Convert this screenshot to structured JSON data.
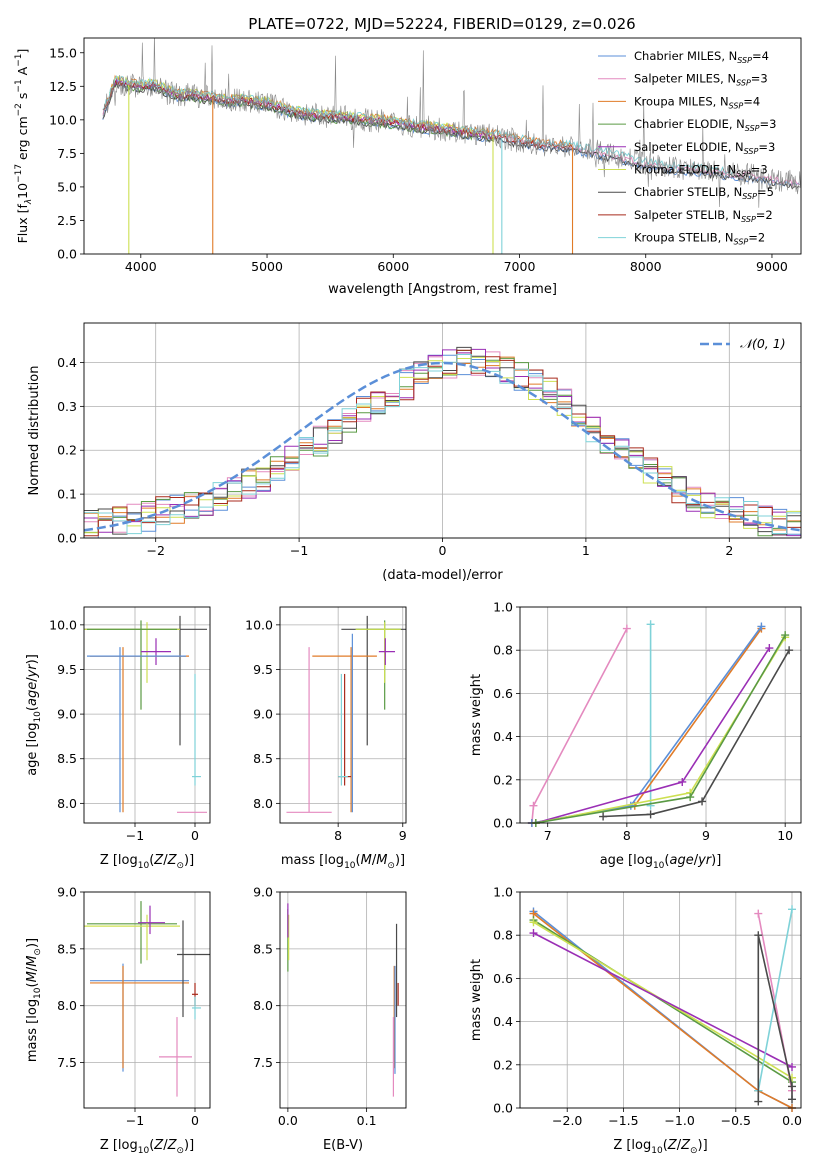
{
  "figure": {
    "title": "PLATE=0722, MJD=52224, FIBERID=0129, z=0.026"
  },
  "colors": {
    "Chabrier MILES": "#5b8fd8",
    "Salpeter MILES": "#e48abf",
    "Kroupa MILES": "#e07b28",
    "Chabrier ELODIE": "#5a9a44",
    "Salpeter ELODIE": "#9a2fb5",
    "Kroupa ELODIE": "#cde052",
    "Chabrier STELIB": "#4a4a4a",
    "Salpeter STELIB": "#a82a1c",
    "Kroupa STELIB": "#7fd2d8",
    "data": "#888888",
    "normal": "#5b8fd8",
    "grid": "#b0b0b0"
  },
  "chart_data": [
    {
      "type": "line",
      "panel": "spectrum",
      "title": "PLATE=0722, MJD=52224, FIBERID=0129, z=0.026",
      "xlabel": "wavelength [Angstrom, rest frame]",
      "ylabel": "Flux [f",
      "ylabel_sub": "λ",
      "ylabel_rest": "10",
      "ylabel_exp": "−17",
      "ylabel_tail": " erg cm",
      "ylabel_exp2": "−2",
      "ylabel_tail2": " s",
      "ylabel_exp3": "−1",
      "ylabel_tail3": " A",
      "ylabel_exp4": "−1",
      "ylabel_end": "]",
      "xlim": [
        3550,
        9230
      ],
      "ylim": [
        0,
        16.1
      ],
      "xticks": [
        4000,
        5000,
        6000,
        7000,
        8000,
        9000
      ],
      "yticks": [
        0.0,
        2.5,
        5.0,
        7.5,
        10.0,
        12.5,
        15.0
      ],
      "grid": false,
      "legend_position": "top-right",
      "legend": [
        {
          "label": "Chabrier MILES, N",
          "sub": "SSP",
          "tail": "=4"
        },
        {
          "label": "Salpeter MILES, N",
          "sub": "SSP",
          "tail": "=3"
        },
        {
          "label": "Kroupa MILES, N",
          "sub": "SSP",
          "tail": "=4"
        },
        {
          "label": "Chabrier ELODIE, N",
          "sub": "SSP",
          "tail": "=3"
        },
        {
          "label": "Salpeter ELODIE, N",
          "sub": "SSP",
          "tail": "=3"
        },
        {
          "label": "Kroupa ELODIE, N",
          "sub": "SSP",
          "tail": "=3"
        },
        {
          "label": "Chabrier STELIB, N",
          "sub": "SSP",
          "tail": "=5"
        },
        {
          "label": "Salpeter STELIB, N",
          "sub": "SSP",
          "tail": "=2"
        },
        {
          "label": "Kroupa STELIB, N",
          "sub": "SSP",
          "tail": "=2"
        }
      ],
      "model_continuum": {
        "x": [
          3700,
          3750,
          3800,
          3900,
          4000,
          4100,
          4200,
          4300,
          4400,
          4500,
          4600,
          4700,
          4800,
          4900,
          5000,
          5200,
          5400,
          5600,
          5800,
          6000,
          6200,
          6400,
          6600,
          6800,
          7000,
          7200,
          7400,
          7600,
          7800,
          8000,
          8200,
          8400,
          8600,
          8800,
          9000,
          9200
        ],
        "y": [
          10.5,
          11.6,
          12.9,
          12.6,
          12.5,
          12.6,
          12.2,
          11.8,
          11.9,
          11.7,
          11.6,
          11.4,
          11.5,
          11.3,
          11.2,
          10.6,
          10.3,
          10.2,
          10.0,
          9.8,
          9.5,
          9.3,
          9.0,
          8.8,
          8.4,
          8.1,
          8.0,
          7.6,
          7.2,
          6.7,
          6.4,
          6.3,
          6.0,
          5.9,
          5.6,
          5.3
        ]
      },
      "edge_drops": [
        {
          "series": "Kroupa ELODIE",
          "x": 3905
        },
        {
          "series": "Kroupa MILES",
          "x": 4570
        },
        {
          "series": "Kroupa ELODIE",
          "x": 6790
        },
        {
          "series": "Kroupa STELIB",
          "x": 6860
        },
        {
          "series": "Kroupa MILES",
          "x": 7420
        }
      ]
    },
    {
      "type": "histogram",
      "panel": "residuals",
      "xlabel": "(data-model)/error",
      "ylabel": "Normed distribution",
      "xlim": [
        -2.5,
        2.5
      ],
      "ylim": [
        0,
        0.49
      ],
      "xticks": [
        -2,
        -1,
        0,
        1,
        2
      ],
      "yticks": [
        0.0,
        0.1,
        0.2,
        0.3,
        0.4
      ],
      "grid": true,
      "legend_position": "top-right",
      "legend": [
        {
          "label": "𝒩(0, 1)"
        }
      ],
      "bin_edges_start": -2.5,
      "bin_width": 0.1,
      "bin_count": 50,
      "envelope": [
        0.03,
        0.035,
        0.04,
        0.045,
        0.05,
        0.06,
        0.065,
        0.075,
        0.085,
        0.095,
        0.11,
        0.125,
        0.14,
        0.16,
        0.18,
        0.2,
        0.22,
        0.245,
        0.27,
        0.29,
        0.31,
        0.33,
        0.35,
        0.37,
        0.385,
        0.395,
        0.4,
        0.4,
        0.395,
        0.385,
        0.37,
        0.35,
        0.33,
        0.305,
        0.28,
        0.25,
        0.225,
        0.2,
        0.175,
        0.15,
        0.13,
        0.11,
        0.095,
        0.08,
        0.07,
        0.06,
        0.05,
        0.04,
        0.035,
        0.03
      ],
      "normal_pdf": {
        "mean": 0,
        "sigma": 1
      }
    },
    {
      "type": "errorbar",
      "panel": "age-vs-Z",
      "xlabel": "Z [log",
      "xlabel_sub": "10",
      "xlabel_tail": "(Z/Z",
      "xlabel_sub2": "⊙",
      "xlabel_end": ")]",
      "ylabel": "age  [log",
      "ylabel_sub": "10",
      "ylabel_tail": "(age/yr)]",
      "xlim": [
        -1.85,
        0.25
      ],
      "ylim": [
        7.78,
        10.2
      ],
      "xticks": [
        -1,
        0
      ],
      "yticks": [
        8.0,
        8.5,
        9.0,
        9.5,
        10.0
      ],
      "grid": true,
      "points": [
        {
          "series": "Chabrier STELIB",
          "x": -0.25,
          "y": 9.95,
          "xerr": [
            1.6,
            0.45
          ],
          "yerr": [
            1.3,
            0.15
          ]
        },
        {
          "series": "Kroupa ELODIE",
          "x": -0.8,
          "y": 9.95,
          "xerr": [
            1.05,
            0.55
          ],
          "yerr": [
            0.6,
            0.08
          ]
        },
        {
          "series": "Chabrier ELODIE",
          "x": -0.9,
          "y": 9.95,
          "xerr": [
            0.9,
            0.6
          ],
          "yerr": [
            0.9,
            0.1
          ]
        },
        {
          "series": "Salpeter ELODIE",
          "x": -0.65,
          "y": 9.7,
          "xerr": [
            0.25,
            0.25
          ],
          "yerr": [
            0.15,
            0.15
          ]
        },
        {
          "series": "Kroupa MILES",
          "x": -1.2,
          "y": 9.65,
          "xerr": [
            0.55,
            1.1
          ],
          "yerr": [
            1.75,
            0.1
          ]
        },
        {
          "series": "Chabrier MILES",
          "x": -1.25,
          "y": 9.65,
          "xerr": [
            0.55,
            1.1
          ],
          "yerr": [
            1.75,
            0.1
          ]
        },
        {
          "series": "Kroupa STELIB",
          "x": 0.0,
          "y": 8.3,
          "xerr": [
            0.05,
            0.1
          ],
          "yerr": [
            0.1,
            1.15
          ]
        },
        {
          "series": "Salpeter MILES",
          "x": -0.3,
          "y": 7.9,
          "xerr": [
            0.0,
            0.5
          ],
          "yerr": [
            0.0,
            0.0
          ]
        }
      ]
    },
    {
      "type": "errorbar",
      "panel": "age-vs-mass",
      "xlabel": "mass [log",
      "xlabel_sub": "10",
      "xlabel_tail": "(M/M",
      "xlabel_sub2": "⊙",
      "xlabel_end": ")]",
      "xlim": [
        7.1,
        9.05
      ],
      "ylim": [
        7.78,
        10.2
      ],
      "xticks": [
        8,
        9
      ],
      "yticks": [
        8.0,
        8.5,
        9.0,
        9.5,
        10.0
      ],
      "grid": true,
      "points": [
        {
          "series": "Chabrier STELIB",
          "x": 8.45,
          "y": 9.95,
          "xerr": [
            0.4,
            0.6
          ],
          "yerr": [
            1.3,
            0.15
          ]
        },
        {
          "series": "Chabrier ELODIE",
          "x": 8.72,
          "y": 9.95,
          "xerr": [
            0.45,
            0.25
          ],
          "yerr": [
            0.9,
            0.1
          ]
        },
        {
          "series": "Kroupa ELODIE",
          "x": 8.72,
          "y": 9.95,
          "xerr": [
            0.45,
            0.25
          ],
          "yerr": [
            0.6,
            0.08
          ]
        },
        {
          "series": "Salpeter ELODIE",
          "x": 8.73,
          "y": 9.7,
          "xerr": [
            0.1,
            0.15
          ],
          "yerr": [
            0.15,
            0.15
          ]
        },
        {
          "series": "Kroupa MILES",
          "x": 8.2,
          "y": 9.65,
          "xerr": [
            0.6,
            0.4
          ],
          "yerr": [
            1.75,
            0.1
          ]
        },
        {
          "series": "Salpeter MILES",
          "x": 7.55,
          "y": 7.9,
          "xerr": [
            0.35,
            0.35
          ],
          "yerr": [
            0.0,
            1.85
          ]
        },
        {
          "series": "Salpeter STELIB",
          "x": 8.1,
          "y": 8.3,
          "xerr": [
            0.1,
            0.1
          ],
          "yerr": [
            0.1,
            1.15
          ]
        },
        {
          "series": "Kroupa STELIB",
          "x": 8.05,
          "y": 8.3,
          "xerr": [
            0.05,
            0.1
          ],
          "yerr": [
            0.1,
            1.15
          ]
        },
        {
          "series": "Chabrier MILES",
          "x": 8.22,
          "y": 8.3,
          "xerr": [
            0.0,
            0.0
          ],
          "yerr": [
            0.4,
            1.6
          ]
        }
      ]
    },
    {
      "type": "line",
      "panel": "weight-vs-age",
      "xlabel": "age  [log",
      "xlabel_sub": "10",
      "xlabel_tail": "(age/yr)]",
      "ylabel": "mass weight",
      "xlim": [
        6.65,
        10.2
      ],
      "ylim": [
        0,
        1.0
      ],
      "xticks": [
        7,
        8,
        9,
        10
      ],
      "yticks": [
        0.0,
        0.2,
        0.4,
        0.6,
        0.8,
        1.0
      ],
      "grid": true,
      "series": [
        {
          "name": "Salpeter MILES",
          "x": [
            6.8,
            6.82,
            8.0
          ],
          "y": [
            0.0,
            0.08,
            0.9
          ]
        },
        {
          "name": "Kroupa STELIB",
          "x": [
            8.3,
            8.3
          ],
          "y": [
            0.08,
            0.92
          ]
        },
        {
          "name": "Kroupa MILES",
          "x": [
            6.8,
            8.1,
            9.7
          ],
          "y": [
            0.0,
            0.08,
            0.9
          ]
        },
        {
          "name": "Chabrier MILES",
          "x": [
            6.8,
            8.05,
            9.7
          ],
          "y": [
            0.0,
            0.08,
            0.91
          ]
        },
        {
          "name": "Salpeter ELODIE",
          "x": [
            6.85,
            8.7,
            9.8
          ],
          "y": [
            0.0,
            0.19,
            0.81
          ]
        },
        {
          "name": "Kroupa ELODIE",
          "x": [
            6.85,
            8.8,
            10.0
          ],
          "y": [
            0.0,
            0.14,
            0.86
          ]
        },
        {
          "name": "Chabrier ELODIE",
          "x": [
            6.85,
            8.8,
            10.0
          ],
          "y": [
            0.0,
            0.12,
            0.87
          ]
        },
        {
          "name": "Chabrier STELIB",
          "x": [
            7.7,
            8.3,
            8.95,
            10.05
          ],
          "y": [
            0.03,
            0.04,
            0.1,
            0.8
          ]
        }
      ]
    },
    {
      "type": "errorbar",
      "panel": "mass-vs-Z",
      "xlabel": "Z [log",
      "xlabel_sub": "10",
      "xlabel_tail": "(Z/Z",
      "xlabel_sub2": "⊙",
      "xlabel_end": ")]",
      "ylabel": "mass [log",
      "ylabel_sub": "10",
      "ylabel_tail": "(M/M",
      "ylabel_sub2": "⊙",
      "ylabel_end": ")]",
      "xlim": [
        -1.85,
        0.25
      ],
      "ylim": [
        7.1,
        9.0
      ],
      "xticks": [
        -1,
        0
      ],
      "yticks": [
        7.5,
        8.0,
        8.5,
        9.0
      ],
      "grid": true,
      "points": [
        {
          "series": "Chabrier ELODIE",
          "x": -0.9,
          "y": 8.72,
          "xerr": [
            0.9,
            0.6
          ],
          "yerr": [
            0.35,
            0.2
          ]
        },
        {
          "series": "Kroupa ELODIE",
          "x": -0.8,
          "y": 8.7,
          "xerr": [
            1.05,
            0.55
          ],
          "yerr": [
            0.3,
            0.1
          ]
        },
        {
          "series": "Salpeter ELODIE",
          "x": -0.75,
          "y": 8.73,
          "xerr": [
            0.2,
            0.25
          ],
          "yerr": [
            0.1,
            0.15
          ]
        },
        {
          "series": "Chabrier MILES",
          "x": -1.2,
          "y": 8.22,
          "xerr": [
            0.55,
            1.1
          ],
          "yerr": [
            0.8,
            0.15
          ]
        },
        {
          "series": "Kroupa MILES",
          "x": -1.2,
          "y": 8.2,
          "xerr": [
            0.55,
            1.1
          ],
          "yerr": [
            0.75,
            0.15
          ]
        },
        {
          "series": "Chabrier STELIB",
          "x": -0.2,
          "y": 8.45,
          "xerr": [
            0.1,
            0.45
          ],
          "yerr": [
            0.55,
            0.3
          ]
        },
        {
          "series": "Salpeter STELIB",
          "x": 0.0,
          "y": 8.1,
          "xerr": [
            0.05,
            0.05
          ],
          "yerr": [
            0.1,
            0.1
          ]
        },
        {
          "series": "Kroupa STELIB",
          "x": 0.0,
          "y": 7.98,
          "xerr": [
            0.05,
            0.1
          ],
          "yerr": [
            0.1,
            0.1
          ]
        },
        {
          "series": "Salpeter MILES",
          "x": -0.3,
          "y": 7.55,
          "xerr": [
            0.3,
            0.25
          ],
          "yerr": [
            0.35,
            0.35
          ]
        }
      ]
    },
    {
      "type": "errorbar",
      "panel": "mass-vs-EBV",
      "xlabel": "E(B-V)",
      "xlim": [
        -0.01,
        0.15
      ],
      "ylim": [
        7.1,
        9.0
      ],
      "xticks": [
        0.0,
        0.1
      ],
      "yticks": [
        7.5,
        8.0,
        8.5,
        9.0
      ],
      "grid": true,
      "points": [
        {
          "series": "Chabrier ELODIE",
          "x": 0.0,
          "y": 8.7,
          "xerr": [
            0.0,
            0.0
          ],
          "yerr": [
            0.4,
            0.15
          ]
        },
        {
          "series": "Kroupa ELODIE",
          "x": 0.001,
          "y": 8.7,
          "xerr": [
            0.0,
            0.0
          ],
          "yerr": [
            0.3,
            0.1
          ]
        },
        {
          "series": "Salpeter ELODIE",
          "x": 0.0,
          "y": 8.75,
          "xerr": [
            0.0,
            0.0
          ],
          "yerr": [
            0.15,
            0.15
          ]
        },
        {
          "series": "Chabrier STELIB",
          "x": 0.138,
          "y": 8.45,
          "xerr": [
            0.0,
            0.0
          ],
          "yerr": [
            0.55,
            0.27
          ]
        },
        {
          "series": "Salpeter STELIB",
          "x": 0.14,
          "y": 8.1,
          "xerr": [
            0.0,
            0.0
          ],
          "yerr": [
            0.1,
            0.1
          ]
        },
        {
          "series": "Kroupa MILES",
          "x": 0.135,
          "y": 8.2,
          "xerr": [
            0.0,
            0.0
          ],
          "yerr": [
            0.75,
            0.15
          ]
        },
        {
          "series": "Chabrier MILES",
          "x": 0.136,
          "y": 8.2,
          "xerr": [
            0.0,
            0.0
          ],
          "yerr": [
            0.8,
            0.15
          ]
        },
        {
          "series": "Salpeter MILES",
          "x": 0.134,
          "y": 7.55,
          "xerr": [
            0.0,
            0.0
          ],
          "yerr": [
            0.35,
            0.35
          ]
        }
      ]
    },
    {
      "type": "line",
      "panel": "weight-vs-Z",
      "xlabel": "Z [log",
      "xlabel_sub": "10",
      "xlabel_tail": "(Z/Z",
      "xlabel_sub2": "⊙",
      "xlabel_end": ")]",
      "ylabel": "mass weight",
      "xlim": [
        -2.42,
        0.08
      ],
      "ylim": [
        0,
        1.0
      ],
      "xticks": [
        -2.0,
        -1.5,
        -1.0,
        -0.5,
        0.0
      ],
      "yticks": [
        0.0,
        0.2,
        0.4,
        0.6,
        0.8,
        1.0
      ],
      "grid": true,
      "series": [
        {
          "name": "Chabrier MILES",
          "x": [
            -2.3,
            -0.3,
            0.0
          ],
          "y": [
            0.91,
            0.08,
            0.0
          ]
        },
        {
          "name": "Kroupa MILES",
          "x": [
            -2.3,
            -0.3,
            0.0
          ],
          "y": [
            0.9,
            0.08,
            0.0
          ]
        },
        {
          "name": "Chabrier ELODIE",
          "x": [
            -2.3,
            0.0
          ],
          "y": [
            0.87,
            0.12
          ]
        },
        {
          "name": "Kroupa ELODIE",
          "x": [
            -2.3,
            0.0
          ],
          "y": [
            0.86,
            0.14
          ]
        },
        {
          "name": "Salpeter ELODIE",
          "x": [
            -2.3,
            0.0
          ],
          "y": [
            0.81,
            0.19
          ]
        },
        {
          "name": "Salpeter MILES",
          "x": [
            -0.3,
            0.0
          ],
          "y": [
            0.9,
            0.08
          ]
        },
        {
          "name": "Kroupa STELIB",
          "x": [
            -0.3,
            0.0
          ],
          "y": [
            0.08,
            0.92
          ]
        },
        {
          "name": "Chabrier STELIB",
          "x": [
            -0.3,
            -0.3,
            0.0,
            0.0
          ],
          "y": [
            0.03,
            0.8,
            0.1,
            0.04
          ]
        }
      ]
    }
  ]
}
